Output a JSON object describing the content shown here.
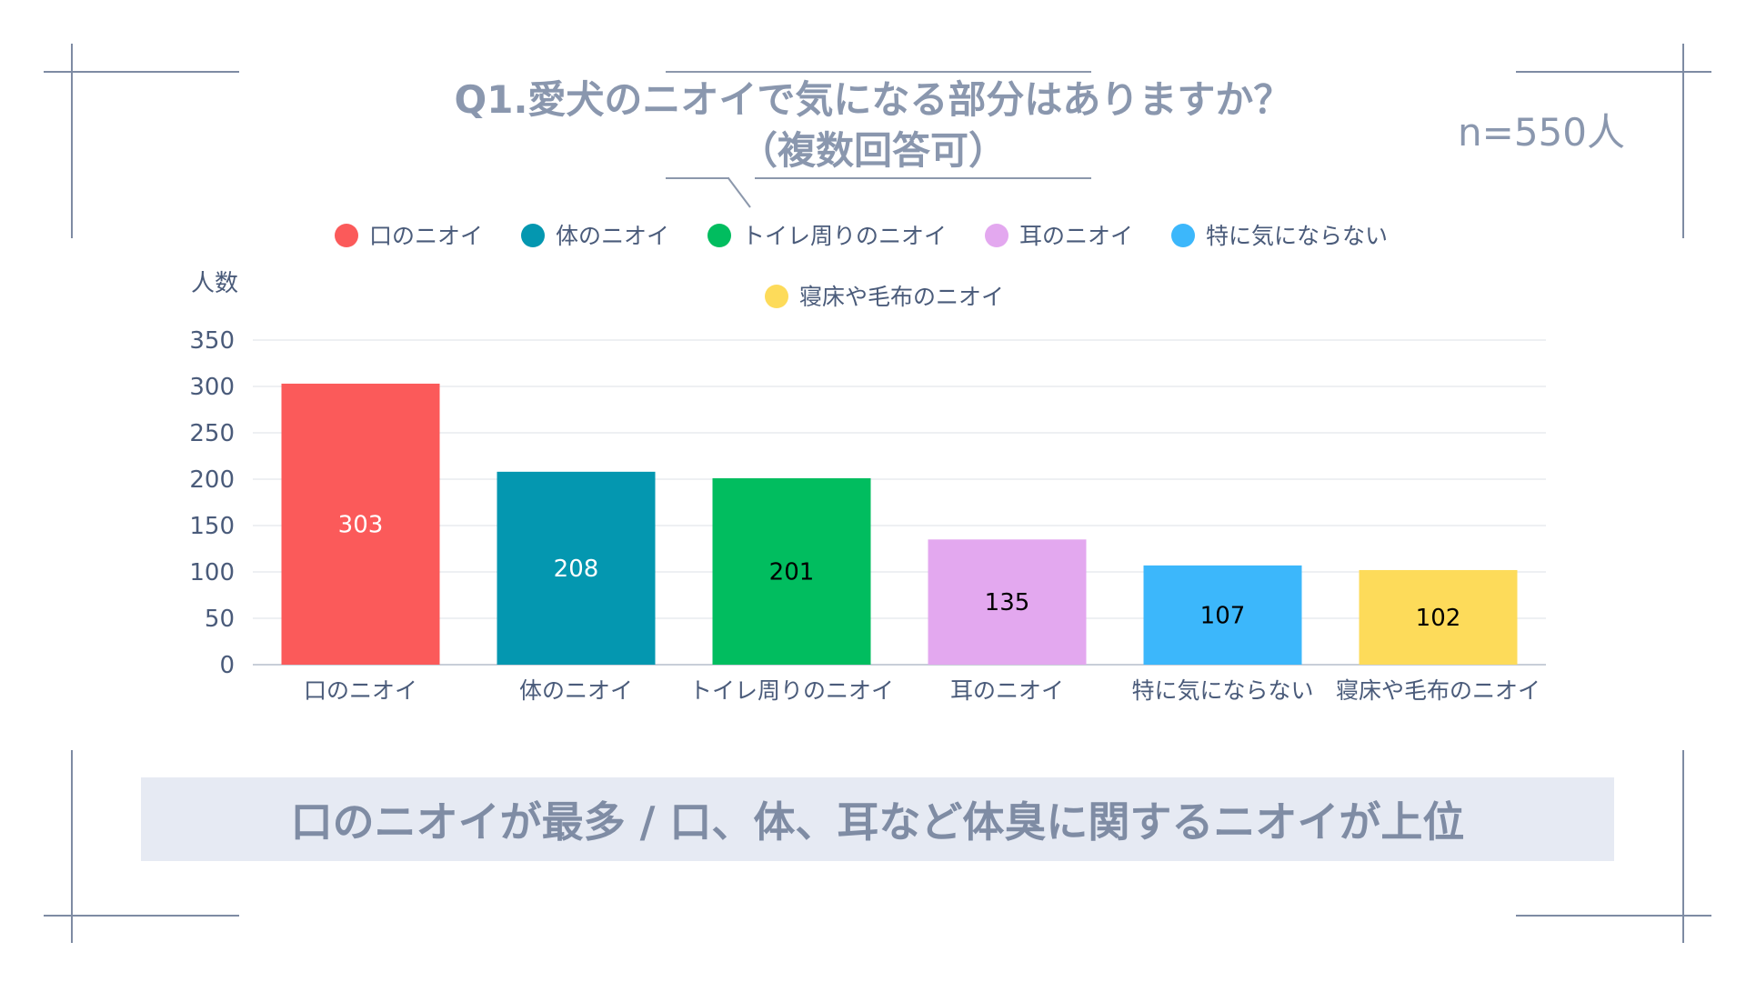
{
  "title_line1": "Q1.愛犬のニオイで気になる部分はありますか？",
  "title_line2": "（複数回答可）",
  "sample_size": "n=550人",
  "summary": "口のニオイが最多 / 口、体、耳など体臭に関するニオイが上位",
  "chart_data": {
    "type": "bar",
    "ylabel": "人数",
    "xlabel": "",
    "ylim": [
      0,
      350
    ],
    "yticks": [
      0,
      50,
      100,
      150,
      200,
      250,
      300,
      350
    ],
    "grid": true,
    "legend_position": "top",
    "categories": [
      "口のニオイ",
      "体のニオイ",
      "トイレ周りのニオイ",
      "耳のニオイ",
      "特に気にならない",
      "寝床や毛布のニオイ"
    ],
    "values": [
      303,
      208,
      201,
      135,
      107,
      102
    ],
    "colors": [
      "#fb5a5a",
      "#0497b0",
      "#01bd5f",
      "#e3a8ef",
      "#3cb7fb",
      "#fddb5a"
    ],
    "label_colors": [
      "#ffffff",
      "#ffffff",
      "#000000",
      "#000000",
      "#000000",
      "#000000"
    ]
  }
}
